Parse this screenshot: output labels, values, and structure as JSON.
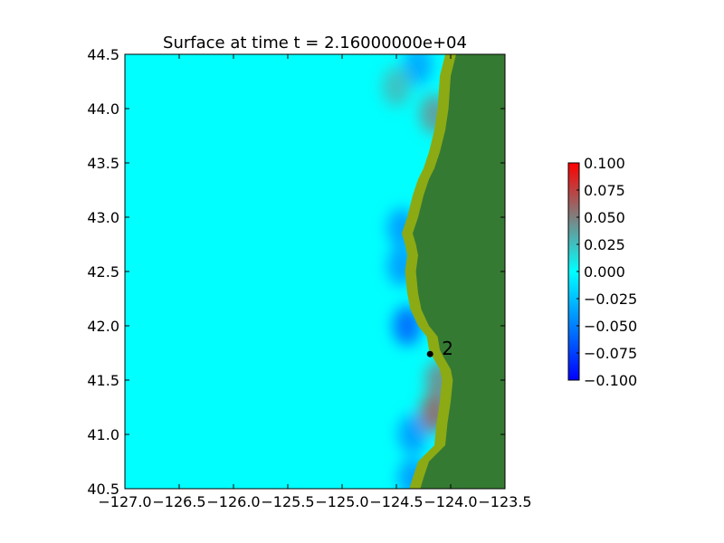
{
  "chart_data": {
    "type": "heatmap",
    "title": "Surface at time t = 2.16000000e+04",
    "xlim": [
      -127.0,
      -123.5
    ],
    "ylim": [
      40.5,
      44.5
    ],
    "x_ticks": [
      {
        "value": -127.0,
        "label": "−127.0"
      },
      {
        "value": -126.5,
        "label": "−126.5"
      },
      {
        "value": -126.0,
        "label": "−126.0"
      },
      {
        "value": -125.5,
        "label": "−125.5"
      },
      {
        "value": -125.0,
        "label": "−125.0"
      },
      {
        "value": -124.5,
        "label": "−124.5"
      },
      {
        "value": -124.0,
        "label": "−124.0"
      },
      {
        "value": -123.5,
        "label": "−123.5"
      }
    ],
    "y_ticks": [
      {
        "value": 40.5,
        "label": "40.5"
      },
      {
        "value": 41.0,
        "label": "41.0"
      },
      {
        "value": 41.5,
        "label": "41.5"
      },
      {
        "value": 42.0,
        "label": "42.0"
      },
      {
        "value": 42.5,
        "label": "42.5"
      },
      {
        "value": 43.0,
        "label": "43.0"
      },
      {
        "value": 43.5,
        "label": "43.5"
      },
      {
        "value": 44.0,
        "label": "44.0"
      },
      {
        "value": 44.5,
        "label": "44.5"
      }
    ],
    "colorbar": {
      "min": -0.1,
      "max": 0.1,
      "colors": [
        "#0000ff",
        "#00ffff",
        "#ff0000"
      ],
      "ticks": [
        {
          "value": 0.1,
          "label": "0.100"
        },
        {
          "value": 0.075,
          "label": "0.075"
        },
        {
          "value": 0.05,
          "label": "0.050"
        },
        {
          "value": 0.025,
          "label": "0.025"
        },
        {
          "value": 0.0,
          "label": "0.000"
        },
        {
          "value": -0.025,
          "label": "−0.025"
        },
        {
          "value": -0.05,
          "label": "−0.050"
        },
        {
          "value": -0.075,
          "label": "−0.075"
        },
        {
          "value": -0.1,
          "label": "−0.100"
        }
      ]
    },
    "background_value": 0.0,
    "land_color": "#357a32",
    "shore_color": "#8caa14",
    "coastline": [
      [
        -124.05,
        44.5
      ],
      [
        -124.1,
        44.3
      ],
      [
        -124.12,
        44.0
      ],
      [
        -124.15,
        43.8
      ],
      [
        -124.2,
        43.6
      ],
      [
        -124.25,
        43.45
      ],
      [
        -124.3,
        43.35
      ],
      [
        -124.35,
        43.2
      ],
      [
        -124.4,
        43.0
      ],
      [
        -124.45,
        42.85
      ],
      [
        -124.42,
        42.75
      ],
      [
        -124.4,
        42.65
      ],
      [
        -124.42,
        42.5
      ],
      [
        -124.4,
        42.3
      ],
      [
        -124.37,
        42.15
      ],
      [
        -124.3,
        42.0
      ],
      [
        -124.22,
        41.9
      ],
      [
        -124.2,
        41.78
      ],
      [
        -124.17,
        41.72
      ],
      [
        -124.1,
        41.6
      ],
      [
        -124.08,
        41.5
      ],
      [
        -124.1,
        41.3
      ],
      [
        -124.13,
        41.1
      ],
      [
        -124.15,
        40.9
      ],
      [
        -124.3,
        40.75
      ],
      [
        -124.35,
        40.6
      ],
      [
        -124.38,
        40.5
      ]
    ],
    "anomalies": [
      {
        "lon": -124.4,
        "lat": 42.0,
        "value": -0.06
      },
      {
        "lon": -124.45,
        "lat": 42.55,
        "value": -0.04
      },
      {
        "lon": -124.45,
        "lat": 42.9,
        "value": -0.04
      },
      {
        "lon": -124.3,
        "lat": 44.4,
        "value": -0.035
      },
      {
        "lon": -124.35,
        "lat": 41.0,
        "value": -0.04
      },
      {
        "lon": -124.35,
        "lat": 40.6,
        "value": -0.04
      },
      {
        "lon": -124.15,
        "lat": 43.95,
        "value": 0.04
      },
      {
        "lon": -124.1,
        "lat": 41.5,
        "value": 0.045
      },
      {
        "lon": -124.15,
        "lat": 41.2,
        "value": 0.06
      },
      {
        "lon": -124.5,
        "lat": 44.2,
        "value": 0.025
      }
    ],
    "gauges": [
      {
        "id": "2",
        "lon": -124.19,
        "lat": 41.74
      }
    ]
  }
}
